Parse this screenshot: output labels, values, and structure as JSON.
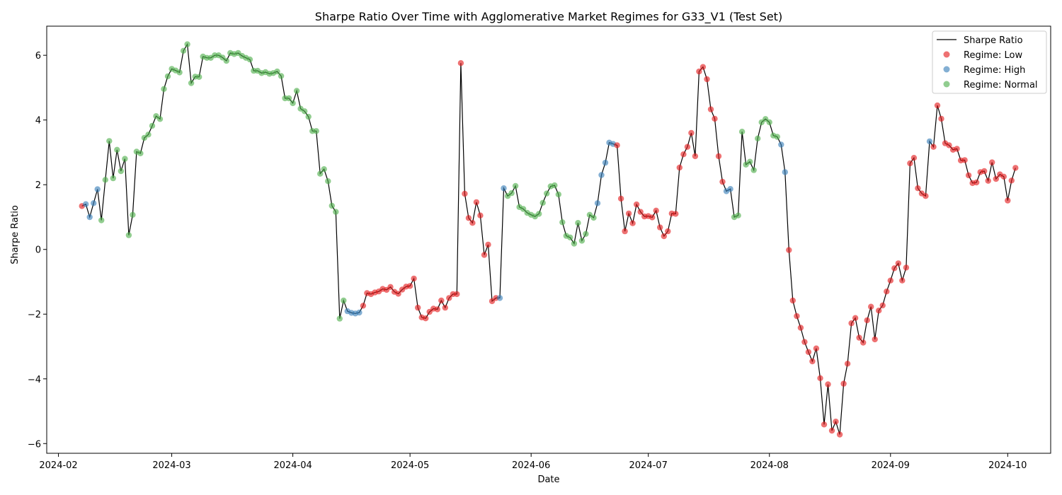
{
  "chart_data": {
    "type": "scatter",
    "title": "Sharpe Ratio Over Time with Agglomerative Market Regimes for G33_V1 (Test Set)",
    "xlabel": "Date",
    "ylabel": "Sharpe Ratio",
    "xlim": [
      "2024-01-29",
      "2024-10-12"
    ],
    "ylim": [
      -6.3,
      6.9
    ],
    "x_ticks": [
      "2024-02-01",
      "2024-03-01",
      "2024-04-01",
      "2024-05-01",
      "2024-06-01",
      "2024-07-01",
      "2024-08-01",
      "2024-09-01",
      "2024-10-01"
    ],
    "x_tick_labels": [
      "2024-02",
      "2024-03",
      "2024-04",
      "2024-05",
      "2024-06",
      "2024-07",
      "2024-08",
      "2024-09",
      "2024-10"
    ],
    "y_ticks": [
      -6,
      -4,
      -2,
      0,
      2,
      4,
      6
    ],
    "y_tick_labels": [
      "−6",
      "−4",
      "−2",
      "0",
      "2",
      "4",
      "6"
    ],
    "grid": false,
    "legend_position": "top-right",
    "line": {
      "name": "Sharpe Ratio",
      "color": "#000000"
    },
    "regimes": [
      {
        "name": "Regime: Low",
        "color": "#e41a1c"
      },
      {
        "name": "Regime: High",
        "color": "#377eb8"
      },
      {
        "name": "Regime: Normal",
        "color": "#4daf4a"
      }
    ],
    "start_date": "2024-02-07",
    "values": [
      1.34,
      1.4,
      1.0,
      1.43,
      1.86,
      0.9,
      2.15,
      3.35,
      2.2,
      3.08,
      2.42,
      2.8,
      0.44,
      1.07,
      3.02,
      2.97,
      3.45,
      3.55,
      3.82,
      4.12,
      4.03,
      4.96,
      5.35,
      5.58,
      5.53,
      5.47,
      6.14,
      6.34,
      5.14,
      5.34,
      5.33,
      5.96,
      5.92,
      5.92,
      6.0,
      6.0,
      5.93,
      5.83,
      6.07,
      6.04,
      6.07,
      5.98,
      5.92,
      5.87,
      5.52,
      5.52,
      5.45,
      5.48,
      5.43,
      5.45,
      5.5,
      5.36,
      4.67,
      4.67,
      4.52,
      4.9,
      4.35,
      4.27,
      4.1,
      3.66,
      3.66,
      2.34,
      2.48,
      2.11,
      1.35,
      1.16,
      -2.14,
      -1.58,
      -1.91,
      -1.96,
      -1.98,
      -1.95,
      -1.74,
      -1.35,
      -1.38,
      -1.33,
      -1.3,
      -1.22,
      -1.25,
      -1.16,
      -1.31,
      -1.37,
      -1.24,
      -1.15,
      -1.13,
      -0.9,
      -1.8,
      -2.1,
      -2.13,
      -1.93,
      -1.83,
      -1.85,
      -1.58,
      -1.8,
      -1.5,
      -1.38,
      -1.38,
      5.76,
      1.72,
      0.97,
      0.82,
      1.46,
      1.05,
      -0.17,
      0.15,
      -1.6,
      -1.5,
      -1.5,
      1.89,
      1.65,
      1.74,
      1.96,
      1.31,
      1.25,
      1.13,
      1.07,
      1.02,
      1.1,
      1.44,
      1.73,
      1.95,
      1.98,
      1.7,
      0.84,
      0.42,
      0.37,
      0.18,
      0.82,
      0.27,
      0.48,
      1.07,
      0.98,
      1.43,
      2.3,
      2.68,
      3.3,
      3.26,
      3.22,
      1.57,
      0.56,
      1.11,
      0.81,
      1.39,
      1.16,
      1.02,
      1.03,
      0.99,
      1.2,
      0.68,
      0.41,
      0.56,
      1.11,
      1.1,
      2.53,
      2.94,
      3.17,
      3.6,
      2.88,
      5.5,
      5.64,
      5.26,
      4.33,
      4.04,
      2.88,
      2.09,
      1.8,
      1.87,
      1.0,
      1.05,
      3.64,
      2.62,
      2.71,
      2.45,
      3.43,
      3.93,
      4.03,
      3.93,
      3.52,
      3.48,
      3.24,
      2.39,
      -0.02,
      -1.58,
      -2.06,
      -2.42,
      -2.86,
      -3.17,
      -3.46,
      -3.06,
      -3.98,
      -5.41,
      -4.17,
      -5.6,
      -5.32,
      -5.72,
      -4.15,
      -3.53,
      -2.28,
      -2.12,
      -2.73,
      -2.88,
      -2.19,
      -1.77,
      -2.78,
      -1.89,
      -1.73,
      -1.3,
      -0.96,
      -0.58,
      -0.43,
      -0.96,
      -0.56,
      2.66,
      2.83,
      1.89,
      1.73,
      1.65,
      3.34,
      3.17,
      4.45,
      4.04,
      3.28,
      3.22,
      3.08,
      3.11,
      2.75,
      2.76,
      2.29,
      2.05,
      2.07,
      2.39,
      2.42,
      2.12,
      2.69,
      2.18,
      2.32,
      2.25,
      1.51,
      2.13,
      2.52
    ],
    "regime_sequence": "LHHHHNNNNNNNNNNNNNNNNNNNNNNNNNNNNNNNNNNNNNNNNNNNNNNNNNNNNNNNNNNNNNNNHHHHLLLLLLLLLLLLLLLLLLLLLLLLLLLLLLLLLLLHHNNNNNNNNNNNNNNNNNNNNNNNHHHHHLLLLLLLLLLLLLLLLLLLLLLLLLLLLHHNNNNNNNNNNNNHHLLLLLLLLLLLLLLLLLLLLLLLLLLLLLLLLLLLLHLLLLLLLLLLLLLLLLLLLLLLHHHHNNNNNNNNN"
  }
}
